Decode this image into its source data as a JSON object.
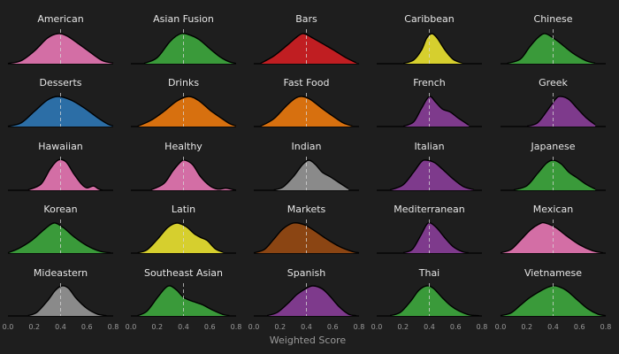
{
  "chart_data": {
    "type": "area",
    "subtype": "density-ridge-facets",
    "xlabel": "Weighted Score",
    "x_ticks": [
      "0.0",
      "0.2",
      "0.4",
      "0.6",
      "0.8"
    ],
    "xlim": [
      0.0,
      0.8
    ],
    "reference_line_x": 0.4,
    "grid": false,
    "background": "#1e1e1e",
    "panels": [
      {
        "name": "American",
        "color": "#d36ea5",
        "peak": 0.38,
        "density": [
          [
            0.0,
            0.01
          ],
          [
            0.1,
            0.1
          ],
          [
            0.2,
            0.42
          ],
          [
            0.3,
            0.85
          ],
          [
            0.38,
            1.0
          ],
          [
            0.45,
            0.92
          ],
          [
            0.55,
            0.62
          ],
          [
            0.65,
            0.3
          ],
          [
            0.72,
            0.1
          ],
          [
            0.8,
            0.02
          ]
        ]
      },
      {
        "name": "Asian Fusion",
        "color": "#3a9a3a",
        "peak": 0.4,
        "density": [
          [
            0.1,
            0.01
          ],
          [
            0.2,
            0.2
          ],
          [
            0.3,
            0.75
          ],
          [
            0.38,
            1.0
          ],
          [
            0.45,
            0.95
          ],
          [
            0.52,
            0.8
          ],
          [
            0.6,
            0.5
          ],
          [
            0.68,
            0.22
          ],
          [
            0.75,
            0.06
          ],
          [
            0.8,
            0.01
          ]
        ]
      },
      {
        "name": "Bars",
        "color": "#c01e22",
        "peak": 0.38,
        "density": [
          [
            0.05,
            0.01
          ],
          [
            0.15,
            0.25
          ],
          [
            0.25,
            0.6
          ],
          [
            0.33,
            0.9
          ],
          [
            0.38,
            1.0
          ],
          [
            0.45,
            0.85
          ],
          [
            0.55,
            0.6
          ],
          [
            0.62,
            0.42
          ],
          [
            0.7,
            0.2
          ],
          [
            0.78,
            0.03
          ]
        ]
      },
      {
        "name": "Caribbean",
        "color": "#d6cf2e",
        "peak": 0.42,
        "density": [
          [
            0.2,
            0.01
          ],
          [
            0.28,
            0.12
          ],
          [
            0.34,
            0.45
          ],
          [
            0.38,
            0.85
          ],
          [
            0.42,
            1.0
          ],
          [
            0.46,
            0.85
          ],
          [
            0.52,
            0.45
          ],
          [
            0.58,
            0.15
          ],
          [
            0.65,
            0.02
          ]
        ]
      },
      {
        "name": "Chinese",
        "color": "#3a9a3a",
        "peak": 0.32,
        "density": [
          [
            0.05,
            0.01
          ],
          [
            0.15,
            0.15
          ],
          [
            0.22,
            0.55
          ],
          [
            0.28,
            0.85
          ],
          [
            0.33,
            1.0
          ],
          [
            0.38,
            0.92
          ],
          [
            0.45,
            0.7
          ],
          [
            0.55,
            0.35
          ],
          [
            0.65,
            0.1
          ],
          [
            0.72,
            0.02
          ]
        ]
      },
      {
        "name": "Desserts",
        "color": "#2c6ea6",
        "peak": 0.38,
        "density": [
          [
            0.0,
            0.01
          ],
          [
            0.1,
            0.12
          ],
          [
            0.2,
            0.5
          ],
          [
            0.3,
            0.88
          ],
          [
            0.38,
            1.0
          ],
          [
            0.48,
            0.88
          ],
          [
            0.58,
            0.62
          ],
          [
            0.68,
            0.3
          ],
          [
            0.76,
            0.08
          ],
          [
            0.8,
            0.02
          ]
        ]
      },
      {
        "name": "Drinks",
        "color": "#d7700f",
        "peak": 0.44,
        "density": [
          [
            0.05,
            0.01
          ],
          [
            0.15,
            0.2
          ],
          [
            0.25,
            0.5
          ],
          [
            0.35,
            0.85
          ],
          [
            0.44,
            1.0
          ],
          [
            0.52,
            0.85
          ],
          [
            0.6,
            0.55
          ],
          [
            0.68,
            0.3
          ],
          [
            0.75,
            0.1
          ],
          [
            0.8,
            0.02
          ]
        ]
      },
      {
        "name": "Fast Food",
        "color": "#d7700f",
        "peak": 0.36,
        "density": [
          [
            0.05,
            0.01
          ],
          [
            0.15,
            0.25
          ],
          [
            0.25,
            0.7
          ],
          [
            0.32,
            0.95
          ],
          [
            0.37,
            1.0
          ],
          [
            0.43,
            0.9
          ],
          [
            0.52,
            0.6
          ],
          [
            0.6,
            0.35
          ],
          [
            0.68,
            0.12
          ],
          [
            0.75,
            0.02
          ]
        ]
      },
      {
        "name": "French",
        "color": "#7e3a8c",
        "peak": 0.4,
        "density": [
          [
            0.2,
            0.01
          ],
          [
            0.28,
            0.15
          ],
          [
            0.34,
            0.6
          ],
          [
            0.4,
            1.0
          ],
          [
            0.45,
            0.8
          ],
          [
            0.5,
            0.58
          ],
          [
            0.56,
            0.48
          ],
          [
            0.62,
            0.28
          ],
          [
            0.7,
            0.05
          ]
        ]
      },
      {
        "name": "Greek",
        "color": "#7e3a8c",
        "peak": 0.45,
        "density": [
          [
            0.2,
            0.01
          ],
          [
            0.28,
            0.12
          ],
          [
            0.35,
            0.5
          ],
          [
            0.42,
            0.92
          ],
          [
            0.46,
            1.0
          ],
          [
            0.52,
            0.9
          ],
          [
            0.58,
            0.62
          ],
          [
            0.65,
            0.3
          ],
          [
            0.72,
            0.06
          ]
        ]
      },
      {
        "name": "Hawaiian",
        "color": "#d36ea5",
        "peak": 0.4,
        "density": [
          [
            0.15,
            0.01
          ],
          [
            0.25,
            0.2
          ],
          [
            0.32,
            0.7
          ],
          [
            0.38,
            1.0
          ],
          [
            0.44,
            0.95
          ],
          [
            0.5,
            0.55
          ],
          [
            0.56,
            0.2
          ],
          [
            0.6,
            0.08
          ],
          [
            0.65,
            0.14
          ],
          [
            0.69,
            0.04
          ],
          [
            0.72,
            0.0
          ]
        ]
      },
      {
        "name": "Healthy",
        "color": "#d36ea5",
        "peak": 0.41,
        "density": [
          [
            0.15,
            0.01
          ],
          [
            0.25,
            0.22
          ],
          [
            0.32,
            0.65
          ],
          [
            0.38,
            0.95
          ],
          [
            0.41,
            1.0
          ],
          [
            0.47,
            0.85
          ],
          [
            0.53,
            0.45
          ],
          [
            0.6,
            0.15
          ],
          [
            0.66,
            0.04
          ],
          [
            0.72,
            0.07
          ],
          [
            0.76,
            0.04
          ],
          [
            0.8,
            0.0
          ]
        ]
      },
      {
        "name": "Indian",
        "color": "#8a8a8a",
        "peak": 0.42,
        "density": [
          [
            0.15,
            0.01
          ],
          [
            0.22,
            0.1
          ],
          [
            0.3,
            0.45
          ],
          [
            0.37,
            0.85
          ],
          [
            0.42,
            1.0
          ],
          [
            0.47,
            0.85
          ],
          [
            0.52,
            0.6
          ],
          [
            0.58,
            0.45
          ],
          [
            0.65,
            0.25
          ],
          [
            0.72,
            0.05
          ]
        ]
      },
      {
        "name": "Italian",
        "color": "#7e3a8c",
        "peak": 0.38,
        "density": [
          [
            0.1,
            0.01
          ],
          [
            0.2,
            0.18
          ],
          [
            0.28,
            0.6
          ],
          [
            0.34,
            0.95
          ],
          [
            0.38,
            1.0
          ],
          [
            0.44,
            0.92
          ],
          [
            0.5,
            0.7
          ],
          [
            0.58,
            0.38
          ],
          [
            0.66,
            0.12
          ],
          [
            0.74,
            0.02
          ]
        ]
      },
      {
        "name": "Japanese",
        "color": "#3a9a3a",
        "peak": 0.4,
        "density": [
          [
            0.1,
            0.01
          ],
          [
            0.2,
            0.15
          ],
          [
            0.28,
            0.55
          ],
          [
            0.35,
            0.9
          ],
          [
            0.4,
            1.0
          ],
          [
            0.46,
            0.88
          ],
          [
            0.52,
            0.6
          ],
          [
            0.58,
            0.42
          ],
          [
            0.65,
            0.2
          ],
          [
            0.72,
            0.04
          ]
        ]
      },
      {
        "name": "Korean",
        "color": "#3a9a3a",
        "peak": 0.37,
        "density": [
          [
            0.0,
            0.01
          ],
          [
            0.08,
            0.15
          ],
          [
            0.18,
            0.42
          ],
          [
            0.28,
            0.8
          ],
          [
            0.35,
            1.0
          ],
          [
            0.42,
            0.85
          ],
          [
            0.5,
            0.55
          ],
          [
            0.6,
            0.25
          ],
          [
            0.7,
            0.06
          ],
          [
            0.78,
            0.01
          ]
        ]
      },
      {
        "name": "Latin",
        "color": "#d6cf2e",
        "peak": 0.36,
        "density": [
          [
            0.05,
            0.01
          ],
          [
            0.12,
            0.1
          ],
          [
            0.2,
            0.45
          ],
          [
            0.28,
            0.85
          ],
          [
            0.35,
            1.0
          ],
          [
            0.42,
            0.88
          ],
          [
            0.48,
            0.65
          ],
          [
            0.53,
            0.52
          ],
          [
            0.58,
            0.42
          ],
          [
            0.64,
            0.15
          ],
          [
            0.7,
            0.03
          ]
        ]
      },
      {
        "name": "Markets",
        "color": "#8b4513",
        "peak": 0.32,
        "density": [
          [
            0.0,
            0.01
          ],
          [
            0.08,
            0.12
          ],
          [
            0.15,
            0.45
          ],
          [
            0.22,
            0.8
          ],
          [
            0.3,
            1.0
          ],
          [
            0.38,
            0.95
          ],
          [
            0.46,
            0.75
          ],
          [
            0.55,
            0.48
          ],
          [
            0.65,
            0.22
          ],
          [
            0.75,
            0.05
          ],
          [
            0.8,
            0.01
          ]
        ]
      },
      {
        "name": "Mediterranean",
        "color": "#7e3a8c",
        "peak": 0.4,
        "density": [
          [
            0.2,
            0.01
          ],
          [
            0.27,
            0.12
          ],
          [
            0.33,
            0.55
          ],
          [
            0.38,
            0.95
          ],
          [
            0.41,
            1.0
          ],
          [
            0.46,
            0.82
          ],
          [
            0.52,
            0.5
          ],
          [
            0.58,
            0.22
          ],
          [
            0.65,
            0.05
          ],
          [
            0.7,
            0.01
          ]
        ]
      },
      {
        "name": "Mexican",
        "color": "#d36ea5",
        "peak": 0.33,
        "density": [
          [
            0.0,
            0.01
          ],
          [
            0.08,
            0.12
          ],
          [
            0.15,
            0.42
          ],
          [
            0.23,
            0.78
          ],
          [
            0.3,
            0.98
          ],
          [
            0.34,
            1.0
          ],
          [
            0.42,
            0.85
          ],
          [
            0.5,
            0.58
          ],
          [
            0.6,
            0.28
          ],
          [
            0.7,
            0.08
          ],
          [
            0.78,
            0.01
          ]
        ]
      },
      {
        "name": "Mideastern",
        "color": "#8a8a8a",
        "peak": 0.42,
        "density": [
          [
            0.15,
            0.01
          ],
          [
            0.22,
            0.12
          ],
          [
            0.3,
            0.5
          ],
          [
            0.36,
            0.85
          ],
          [
            0.41,
            1.0
          ],
          [
            0.46,
            0.92
          ],
          [
            0.52,
            0.58
          ],
          [
            0.6,
            0.25
          ],
          [
            0.68,
            0.06
          ],
          [
            0.75,
            0.01
          ]
        ]
      },
      {
        "name": "Southeast Asian",
        "color": "#3a9a3a",
        "peak": 0.3,
        "density": [
          [
            0.05,
            0.01
          ],
          [
            0.12,
            0.15
          ],
          [
            0.2,
            0.6
          ],
          [
            0.26,
            0.92
          ],
          [
            0.3,
            1.0
          ],
          [
            0.35,
            0.85
          ],
          [
            0.4,
            0.62
          ],
          [
            0.46,
            0.5
          ],
          [
            0.54,
            0.38
          ],
          [
            0.62,
            0.2
          ],
          [
            0.7,
            0.05
          ],
          [
            0.75,
            0.01
          ]
        ]
      },
      {
        "name": "Spanish",
        "color": "#7e3a8c",
        "peak": 0.44,
        "density": [
          [
            0.1,
            0.01
          ],
          [
            0.18,
            0.12
          ],
          [
            0.26,
            0.42
          ],
          [
            0.33,
            0.72
          ],
          [
            0.4,
            0.92
          ],
          [
            0.45,
            1.0
          ],
          [
            0.52,
            0.9
          ],
          [
            0.58,
            0.65
          ],
          [
            0.65,
            0.3
          ],
          [
            0.72,
            0.06
          ],
          [
            0.78,
            0.01
          ]
        ]
      },
      {
        "name": "Thai",
        "color": "#3a9a3a",
        "peak": 0.38,
        "density": [
          [
            0.1,
            0.01
          ],
          [
            0.18,
            0.12
          ],
          [
            0.26,
            0.5
          ],
          [
            0.32,
            0.85
          ],
          [
            0.38,
            1.0
          ],
          [
            0.43,
            0.92
          ],
          [
            0.5,
            0.6
          ],
          [
            0.56,
            0.35
          ],
          [
            0.62,
            0.18
          ],
          [
            0.7,
            0.04
          ],
          [
            0.78,
            0.01
          ]
        ]
      },
      {
        "name": "Vietnamese",
        "color": "#3a9a3a",
        "peak": 0.4,
        "density": [
          [
            0.0,
            0.01
          ],
          [
            0.08,
            0.1
          ],
          [
            0.15,
            0.35
          ],
          [
            0.22,
            0.6
          ],
          [
            0.3,
            0.82
          ],
          [
            0.37,
            0.97
          ],
          [
            0.42,
            1.0
          ],
          [
            0.5,
            0.85
          ],
          [
            0.58,
            0.55
          ],
          [
            0.66,
            0.25
          ],
          [
            0.74,
            0.06
          ],
          [
            0.8,
            0.01
          ]
        ]
      }
    ]
  }
}
